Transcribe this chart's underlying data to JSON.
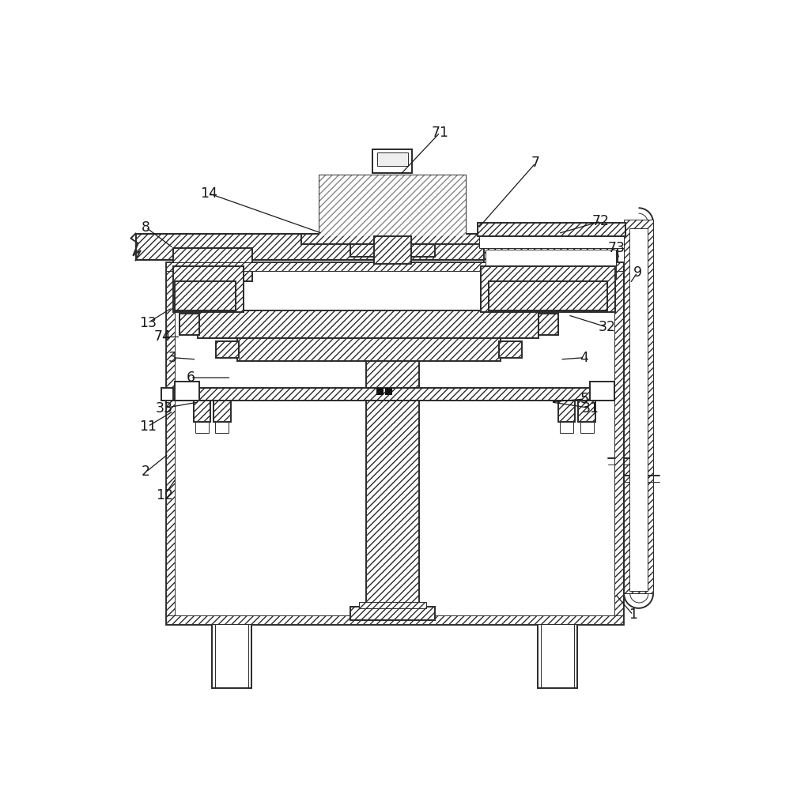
{
  "bg_color": "#ffffff",
  "lc": "#2a2a2a",
  "label_color": "#1a1a1a",
  "hatch": "////",
  "lw_main": 1.4,
  "lw_thin": 0.7,
  "lw_thick": 2.0,
  "font_size": 12.5,
  "labels": [
    [
      "1",
      875,
      855,
      845,
      820
    ],
    [
      "2",
      75,
      620,
      112,
      590
    ],
    [
      "3",
      118,
      432,
      158,
      435
    ],
    [
      "4",
      795,
      432,
      755,
      435
    ],
    [
      "5",
      795,
      500,
      740,
      505
    ],
    [
      "6",
      148,
      465,
      215,
      465
    ],
    [
      "7",
      715,
      112,
      620,
      220
    ],
    [
      "8",
      75,
      218,
      120,
      252
    ],
    [
      "9",
      882,
      292,
      870,
      310
    ],
    [
      "11",
      78,
      545,
      120,
      520
    ],
    [
      "12",
      105,
      658,
      125,
      630
    ],
    [
      "13",
      78,
      375,
      118,
      350
    ],
    [
      "14",
      178,
      162,
      365,
      228
    ],
    [
      "31",
      805,
      515,
      740,
      505
    ],
    [
      "32",
      832,
      382,
      768,
      362
    ],
    [
      "33",
      105,
      515,
      162,
      505
    ],
    [
      "71",
      558,
      62,
      492,
      132
    ],
    [
      "72",
      822,
      208,
      752,
      228
    ],
    [
      "73",
      848,
      252,
      852,
      270
    ],
    [
      "74",
      102,
      398,
      132,
      398
    ]
  ]
}
